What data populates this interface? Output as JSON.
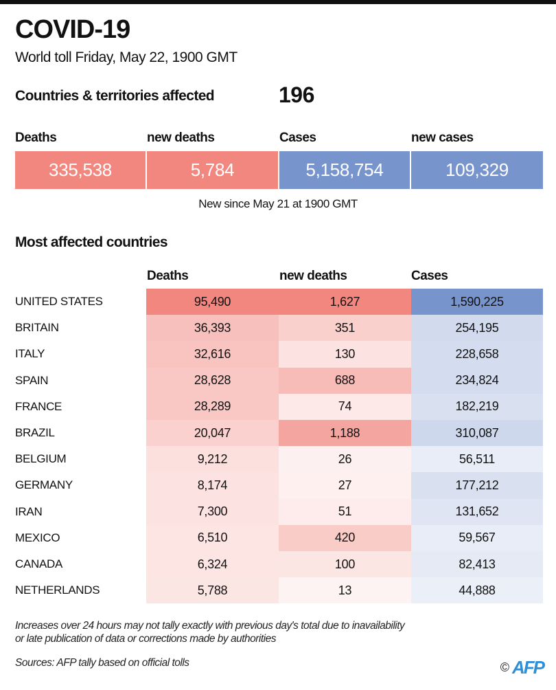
{
  "header": {
    "title": "COVID-19",
    "subtitle": "World toll Friday, May 22, 1900 GMT",
    "countries_label": "Countries & territories affected",
    "countries_value": "196"
  },
  "summary": [
    {
      "label": "Deaths",
      "value": "335,538",
      "color": "#f2877f"
    },
    {
      "label": "new deaths",
      "value": "5,784",
      "color": "#f2877f"
    },
    {
      "label": "Cases",
      "value": "5,158,754",
      "color": "#7894cd"
    },
    {
      "label": "new cases",
      "value": "109,329",
      "color": "#7894cd"
    }
  ],
  "new_since": "New since May 21 at 1900 GMT",
  "colors": {
    "red": "#f2877f",
    "blue": "#7894cd"
  },
  "chart_data": {
    "type": "table",
    "title": "Most affected countries",
    "columns": [
      "Deaths",
      "new deaths",
      "Cases"
    ],
    "rows": [
      {
        "country": "UNITED STATES",
        "deaths": "95,490",
        "new_deaths": "1,627",
        "cases": "1,590,225"
      },
      {
        "country": "BRITAIN",
        "deaths": "36,393",
        "new_deaths": "351",
        "cases": "254,195"
      },
      {
        "country": "ITALY",
        "deaths": "32,616",
        "new_deaths": "130",
        "cases": "228,658"
      },
      {
        "country": "SPAIN",
        "deaths": "28,628",
        "new_deaths": "688",
        "cases": "234,824"
      },
      {
        "country": "FRANCE",
        "deaths": "28,289",
        "new_deaths": "74",
        "cases": "182,219"
      },
      {
        "country": "BRAZIL",
        "deaths": "20,047",
        "new_deaths": "1,188",
        "cases": "310,087"
      },
      {
        "country": "BELGIUM",
        "deaths": "9,212",
        "new_deaths": "26",
        "cases": "56,511"
      },
      {
        "country": "GERMANY",
        "deaths": "8,174",
        "new_deaths": "27",
        "cases": "177,212"
      },
      {
        "country": "IRAN",
        "deaths": "7,300",
        "new_deaths": "51",
        "cases": "131,652"
      },
      {
        "country": "MEXICO",
        "deaths": "6,510",
        "new_deaths": "420",
        "cases": "59,567"
      },
      {
        "country": "CANADA",
        "deaths": "6,324",
        "new_deaths": "100",
        "cases": "82,413"
      },
      {
        "country": "NETHERLANDS",
        "deaths": "5,788",
        "new_deaths": "13",
        "cases": "44,888"
      }
    ]
  },
  "footer": {
    "note_line1": "Increases over 24 hours may not tally exactly with previous day's total due to inavailability",
    "note_line2": "or late publication of data or corrections made by authorities",
    "sources": "Sources: AFP tally based on official tolls",
    "copyright": "©",
    "logo": "AFP"
  }
}
